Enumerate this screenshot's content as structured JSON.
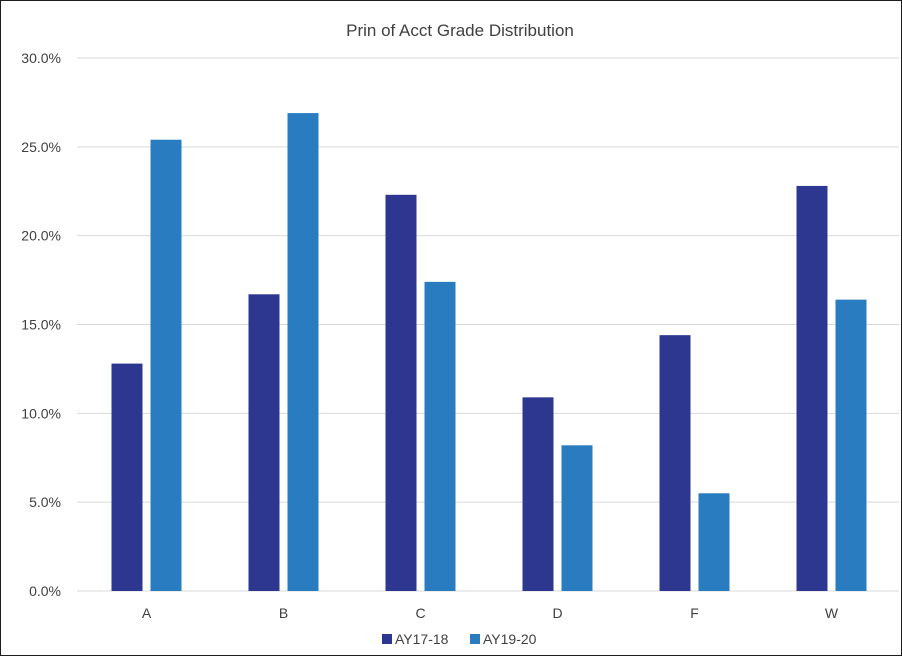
{
  "chart_data": {
    "type": "bar",
    "title": "Prin of Acct Grade Distribution",
    "xlabel": "",
    "ylabel": "",
    "categories": [
      "A",
      "B",
      "C",
      "D",
      "F",
      "W"
    ],
    "series": [
      {
        "name": "AY17-18",
        "color": "#2e3790",
        "values": [
          12.8,
          16.7,
          22.3,
          10.9,
          14.4,
          22.8
        ]
      },
      {
        "name": "AY19-20",
        "color": "#2a7cc1",
        "values": [
          25.4,
          26.9,
          17.4,
          8.2,
          5.5,
          16.4
        ]
      }
    ],
    "ylim": [
      0,
      30
    ],
    "yticks": [
      0,
      5,
      10,
      15,
      20,
      25,
      30
    ],
    "ytick_labels": [
      "0.0%",
      "5.0%",
      "10.0%",
      "15.0%",
      "20.0%",
      "25.0%",
      "30.0%"
    ],
    "grid": true,
    "legend_position": "bottom",
    "gridline_color": "#d9d9d9"
  }
}
